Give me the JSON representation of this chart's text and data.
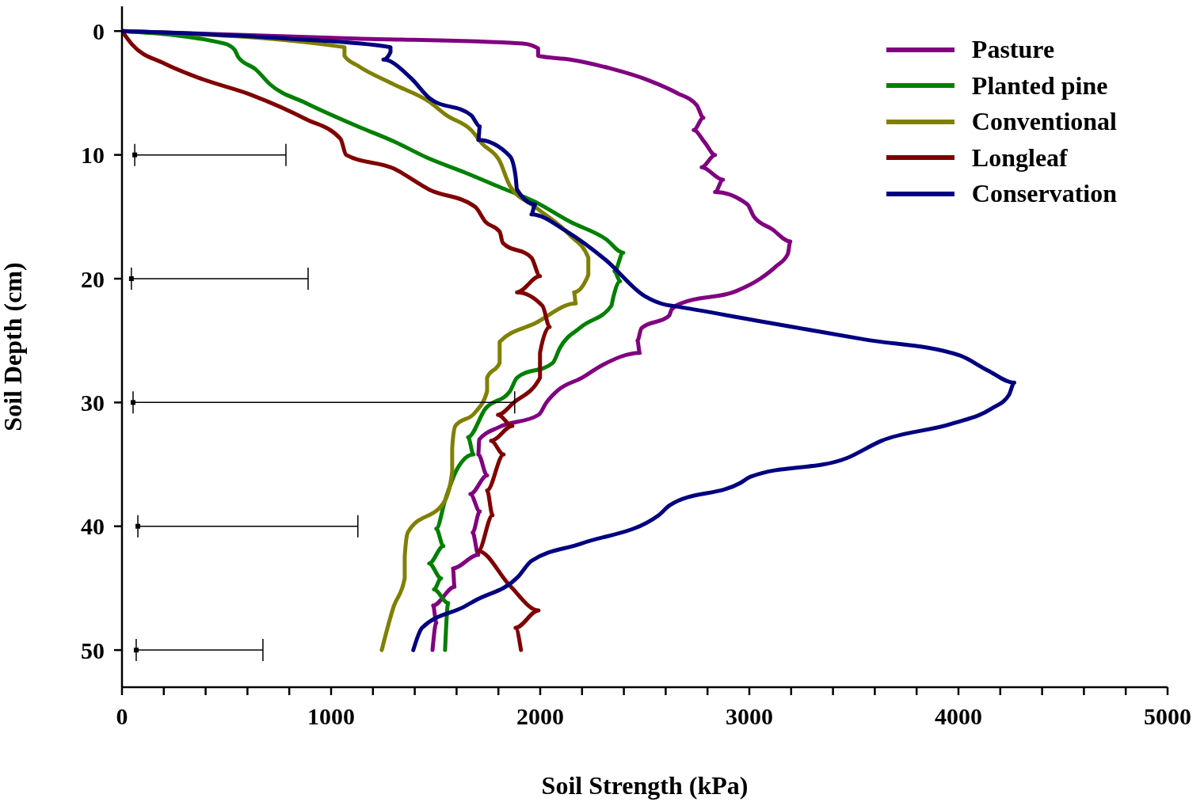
{
  "chart_data": {
    "type": "line",
    "xlabel": "Soil Strength (kPa)",
    "ylabel": "Soil Depth (cm)",
    "xlim": [
      0,
      5000
    ],
    "xticks": [
      0,
      {
        "value": 200,
        "label": null
      },
      {
        "value": 400,
        "label": null
      },
      {
        "value": 600,
        "label": null
      },
      {
        "value": 800,
        "label": null
      },
      1000,
      {
        "value": 1200,
        "label": null
      },
      {
        "value": 1400,
        "label": null
      },
      {
        "value": 1600,
        "label": null
      },
      {
        "value": 1800,
        "label": null
      },
      2000,
      {
        "value": 2200,
        "label": null
      },
      {
        "value": 2400,
        "label": null
      },
      {
        "value": 2600,
        "label": null
      },
      {
        "value": 2800,
        "label": null
      },
      3000,
      {
        "value": 3200,
        "label": null
      },
      {
        "value": 3400,
        "label": null
      },
      {
        "value": 3600,
        "label": null
      },
      {
        "value": 3800,
        "label": null
      },
      4000,
      {
        "value": 4200,
        "label": null
      },
      {
        "value": 4400,
        "label": null
      },
      {
        "value": 4600,
        "label": null
      },
      {
        "value": 4800,
        "label": null
      },
      5000
    ],
    "ylim": [
      53,
      -2
    ],
    "yticks": [
      0,
      10,
      20,
      30,
      40,
      50
    ],
    "grid": false,
    "legend": "top right",
    "marker": "none",
    "line_style": "solid",
    "series": [
      {
        "name": "Pasture",
        "color": "#800080",
        "x": [
          0,
          1120,
          1916,
          1990,
          1990,
          2143,
          2332,
          2522,
          2654,
          2749,
          2780,
          2734,
          2787,
          2836,
          2772,
          2874,
          2836,
          2991,
          3022,
          3109,
          3196,
          3184,
          3128,
          3052,
          2938,
          2673,
          2628,
          2616,
          2484,
          2465,
          2476,
          2295,
          2200,
          2086,
          2030,
          1992,
          1802,
          1708,
          1704,
          1746,
          1666,
          1711,
          1677,
          1704,
          1583,
          1590,
          1488,
          1503,
          1485
        ],
        "values": [
          0,
          0.6,
          1,
          1.4,
          2,
          2.3,
          3,
          4,
          5,
          6,
          7,
          8,
          9,
          10,
          11,
          12,
          13,
          14,
          15,
          16,
          17,
          18,
          19,
          20,
          21,
          22,
          22.5,
          23,
          24,
          25,
          26,
          27,
          28,
          29,
          30,
          31,
          32,
          33,
          34.2,
          35.9,
          37.4,
          38.8,
          40.5,
          42.3,
          43.4,
          44.9,
          46.4,
          47.8,
          50
        ]
      },
      {
        "name": "Planted pine",
        "color": "#008000",
        "x": [
          0,
          488,
          538,
          556,
          640,
          708,
          878,
          1128,
          1299,
          1469,
          1636,
          1806,
          1976,
          2143,
          2314,
          2397,
          2355,
          2382,
          2348,
          2340,
          2196,
          2094,
          2060,
          1889,
          1855,
          1738,
          1655,
          1681,
          1602,
          1545,
          1503,
          1537,
          1469,
          1526,
          1492,
          1560,
          1545
        ],
        "values": [
          0,
          1,
          1.5,
          2.1,
          3.1,
          4.3,
          5.8,
          7.7,
          8.9,
          10.3,
          11.4,
          12.6,
          13.8,
          15.4,
          16.8,
          17.9,
          19.4,
          20.2,
          21.6,
          22.2,
          23.9,
          25.6,
          26.8,
          28,
          29.1,
          30.5,
          32.8,
          34.2,
          35.4,
          37.9,
          40.2,
          41.6,
          43,
          44.2,
          45.1,
          46.2,
          50
        ]
      },
      {
        "name": "Conventional",
        "color": "#808000",
        "x": [
          0,
          1064,
          1064,
          1128,
          1299,
          1469,
          1552,
          1670,
          1723,
          1806,
          1855,
          1976,
          2143,
          2230,
          2230,
          2162,
          2170,
          1976,
          1806,
          1806,
          1746,
          1746,
          1689,
          1594,
          1579,
          1579,
          1545,
          1367,
          1352,
          1352,
          1299,
          1242
        ],
        "values": [
          0,
          1.3,
          2,
          2.8,
          4.3,
          5.7,
          6.8,
          8,
          9.1,
          10.5,
          12.5,
          14.2,
          16.5,
          18.3,
          19.7,
          21.1,
          22,
          23.6,
          25.1,
          26.8,
          28,
          29.1,
          30.8,
          31.9,
          33.7,
          35.6,
          37.9,
          40.5,
          42.5,
          44.2,
          46.5,
          50
        ]
      },
      {
        "name": "Longleaf",
        "color": "#800000",
        "x": [
          0,
          49,
          201,
          371,
          625,
          878,
          1045,
          1072,
          1299,
          1469,
          1689,
          1738,
          1806,
          1821,
          1958,
          1999,
          1889,
          2011,
          2045,
          1999,
          1999,
          1874,
          1798,
          1867,
          1765,
          1825,
          1746,
          1772,
          1704,
          1855,
          1992,
          1882,
          1908
        ],
        "values": [
          0,
          1.1,
          2.6,
          3.8,
          5.2,
          7.1,
          8.7,
          10,
          11.1,
          12.8,
          14.2,
          15.4,
          16.2,
          17.1,
          18.3,
          19.8,
          21.1,
          22.2,
          23.9,
          26,
          28,
          30,
          31,
          31.9,
          33.1,
          34.2,
          37.1,
          39.1,
          42,
          44.8,
          46.8,
          48.2,
          50
        ]
      },
      {
        "name": "Conservation",
        "color": "#000080",
        "x": [
          0,
          791,
          1284,
          1284,
          1250,
          1382,
          1469,
          1670,
          1711,
          1704,
          1855,
          1882,
          1889,
          1976,
          1958,
          2128,
          2314,
          2499,
          2598,
          2635,
          3040,
          3548,
          4006,
          4139,
          4267,
          4241,
          4158,
          3972,
          3631,
          3465,
          3006,
          2957,
          2620,
          2567,
          2196,
          1958,
          1893,
          1689,
          1636,
          1435,
          1393
        ],
        "values": [
          0,
          0.6,
          1.3,
          1.7,
          2.3,
          3.8,
          5.4,
          6.8,
          7.7,
          8.8,
          10.1,
          11.7,
          12.8,
          14,
          14.8,
          16.2,
          18.5,
          21.4,
          22.1,
          22.2,
          23.4,
          24.9,
          26.2,
          27.4,
          28.4,
          29.4,
          30.5,
          31.7,
          33.1,
          34.5,
          36,
          36.5,
          38.3,
          39.1,
          41.4,
          42.8,
          44.1,
          46,
          46.5,
          48.2,
          50
        ]
      },
      {
        "type": "scatter",
        "color": "#000000",
        "marker": "square",
        "x": [
          61,
          45,
          53,
          76,
          68
        ],
        "values": [
          10,
          20,
          30,
          40,
          50
        ],
        "xerrors": [
          [
            61,
            784
          ],
          [
            45,
            890
          ],
          [
            53,
            1878
          ],
          [
            76,
            1128
          ],
          [
            68,
            674
          ]
        ]
      }
    ]
  }
}
